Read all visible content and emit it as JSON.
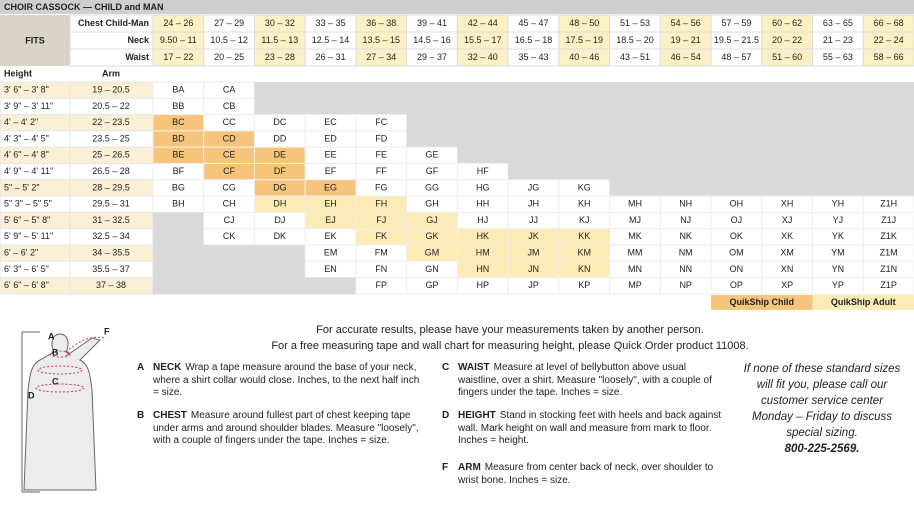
{
  "header": {
    "title": "CHOIR CASSOCK — CHILD and MAN"
  },
  "table": {
    "fits_label": "FITS",
    "size_labels": [
      "Chest Child-Man",
      "Neck",
      "Waist"
    ],
    "sizes": [
      [
        "24 – 26",
        "27 – 29",
        "30 – 32",
        "33 – 35",
        "36 – 38",
        "39 – 41",
        "42 – 44",
        "45 – 47",
        "48 – 50",
        "51 – 53",
        "54 – 56",
        "57 – 59",
        "60 – 62",
        "63 – 65",
        "66 – 68"
      ],
      [
        "9.50 – 11",
        "10.5 – 12",
        "11.5 – 13",
        "12.5 – 14",
        "13.5 – 15",
        "14.5 – 16",
        "15.5 – 17",
        "16.5 – 18",
        "17.5 – 19",
        "18.5 – 20",
        "19 – 21",
        "19.5 – 21.5",
        "20 – 22",
        "21 – 23",
        "22 – 24"
      ],
      [
        "17 – 22",
        "20 – 25",
        "23 – 28",
        "26 – 31",
        "27 – 34",
        "29 – 37",
        "32 – 40",
        "35 – 43",
        "40 – 46",
        "43 – 51",
        "46 – 54",
        "48 – 57",
        "51 – 60",
        "55 – 63",
        "58 – 66"
      ]
    ],
    "header_shades": [
      "#fdf0c4",
      "#ffffff"
    ],
    "row_headers": [
      "Height",
      "Arm"
    ],
    "rows": [
      {
        "height": "3' 6\" – 3' 8\"",
        "arm": "19 – 20.5",
        "codes": [
          "BA",
          "CA",
          null,
          null,
          null,
          null,
          null,
          null,
          null,
          null,
          null,
          null,
          null,
          null,
          null
        ]
      },
      {
        "height": "3' 9\" – 3' 11\"",
        "arm": "20.5 – 22",
        "codes": [
          "BB",
          "CB",
          null,
          null,
          null,
          null,
          null,
          null,
          null,
          null,
          null,
          null,
          null,
          null,
          null
        ]
      },
      {
        "height": "4' – 4' 2\"",
        "arm": "22 – 23.5",
        "codes": [
          "BC",
          "CC",
          "DC",
          "EC",
          "FC",
          null,
          null,
          null,
          null,
          null,
          null,
          null,
          null,
          null,
          null
        ]
      },
      {
        "height": "4' 3\" – 4' 5\"",
        "arm": "23.5 – 25",
        "codes": [
          "BD",
          "CD",
          "DD",
          "ED",
          "FD",
          null,
          null,
          null,
          null,
          null,
          null,
          null,
          null,
          null,
          null
        ]
      },
      {
        "height": "4' 6\" – 4' 8\"",
        "arm": "25 – 26.5",
        "codes": [
          "BE",
          "CE",
          "DE",
          "EE",
          "FE",
          "GE",
          null,
          null,
          null,
          null,
          null,
          null,
          null,
          null,
          null
        ]
      },
      {
        "height": "4' 9\" – 4' 11\"",
        "arm": "26.5 – 28",
        "codes": [
          "BF",
          "CF",
          "DF",
          "EF",
          "FF",
          "GF",
          "HF",
          null,
          null,
          null,
          null,
          null,
          null,
          null,
          null
        ]
      },
      {
        "height": "5\" – 5' 2\"",
        "arm": "28 – 29.5",
        "codes": [
          "BG",
          "CG",
          "DG",
          "EG",
          "FG",
          "GG",
          "HG",
          "JG",
          "KG",
          null,
          null,
          null,
          null,
          null,
          null
        ]
      },
      {
        "height": "5\" 3\" – 5\" 5\"",
        "arm": "29.5 – 31",
        "codes": [
          "BH",
          "CH",
          "DH",
          "EH",
          "FH",
          "GH",
          "HH",
          "JH",
          "KH",
          "MH",
          "NH",
          "OH",
          "XH",
          "YH",
          "Z1H"
        ]
      },
      {
        "height": "5' 6\" – 5\" 8\"",
        "arm": "31 – 32.5",
        "codes": [
          null,
          "CJ",
          "DJ",
          "EJ",
          "FJ",
          "GJ",
          "HJ",
          "JJ",
          "KJ",
          "MJ",
          "NJ",
          "OJ",
          "XJ",
          "YJ",
          "Z1J"
        ]
      },
      {
        "height": "5' 9\" – 5' 11\"",
        "arm": "32.5 – 34",
        "codes": [
          null,
          "CK",
          "DK",
          "EK",
          "FK",
          "GK",
          "HK",
          "JK",
          "KK",
          "MK",
          "NK",
          "OK",
          "XK",
          "YK",
          "Z1K"
        ]
      },
      {
        "height": "6' – 6' 2\"",
        "arm": "34 – 35.5",
        "codes": [
          null,
          null,
          null,
          "EM",
          "FM",
          "GM",
          "HM",
          "JM",
          "KM",
          "MM",
          "NM",
          "OM",
          "XM",
          "YM",
          "Z1M"
        ]
      },
      {
        "height": "6' 3\" – 6' 5\"",
        "arm": "35.5 – 37",
        "codes": [
          null,
          null,
          null,
          "EN",
          "FN",
          "GN",
          "HN",
          "JN",
          "KN",
          "MN",
          "NN",
          "ON",
          "XN",
          "YN",
          "Z1N"
        ]
      },
      {
        "height": "6' 6\" – 6' 8\"",
        "arm": "37 – 38",
        "codes": [
          null,
          null,
          null,
          null,
          "FP",
          "GP",
          "HP",
          "JP",
          "KP",
          "MP",
          "NP",
          "OP",
          "XP",
          "YP",
          "Z1P"
        ]
      }
    ]
  },
  "legend": [
    {
      "label": "QuikShip Child",
      "color": "#f7c47c",
      "codes": [
        "BC",
        "BD",
        "CD",
        "BE",
        "CE",
        "DE",
        "CF",
        "DF",
        "DG",
        "EG"
      ]
    },
    {
      "label": "QuikShip Adult",
      "color": "#fcebb5",
      "codes": [
        "DH",
        "EH",
        "FH",
        "EJ",
        "FJ",
        "GJ",
        "FK",
        "GK",
        "HK",
        "JK",
        "KK",
        "GM",
        "HM",
        "JM",
        "KM",
        "HN",
        "JN",
        "KN"
      ]
    }
  ],
  "instructions": [
    "For accurate results, please have your measurements taken by another person.",
    "For a free measuring tape and wall chart for measuring height, please Quick Order product 11008."
  ],
  "measurements": [
    {
      "letter": "A",
      "name": "NECK",
      "text": "Wrap a tape measure around the base of your neck, where a shirt collar would close. Inches, to the next half inch = size."
    },
    {
      "letter": "B",
      "name": "CHEST",
      "text": "Measure around fullest part of chest keeping tape under arms and around shoulder blades. Measure \"loosely\", with a couple of fingers under the tape. Inches = size."
    },
    {
      "letter": "C",
      "name": "WAIST",
      "text": "Measure at level of bellybutton above usual waistline, over a shirt. Measure \"loosely\", with a couple of fingers under the tape. Inches = size."
    },
    {
      "letter": "D",
      "name": "HEIGHT",
      "text": "Stand in stocking feet with heels and back against wall. Mark height on wall and measure from mark to floor. Inches = height."
    },
    {
      "letter": "F",
      "name": "ARM",
      "text": "Measure from center back of neck, over shoulder to wrist bone. Inches = size."
    }
  ],
  "note": {
    "text": "If none of these standard sizes will fit you, please call our customer service center Monday – Friday to discuss special sizing.",
    "phone": "800-225-2569."
  },
  "figure_labels": [
    "A",
    "B",
    "C",
    "D",
    "F"
  ]
}
